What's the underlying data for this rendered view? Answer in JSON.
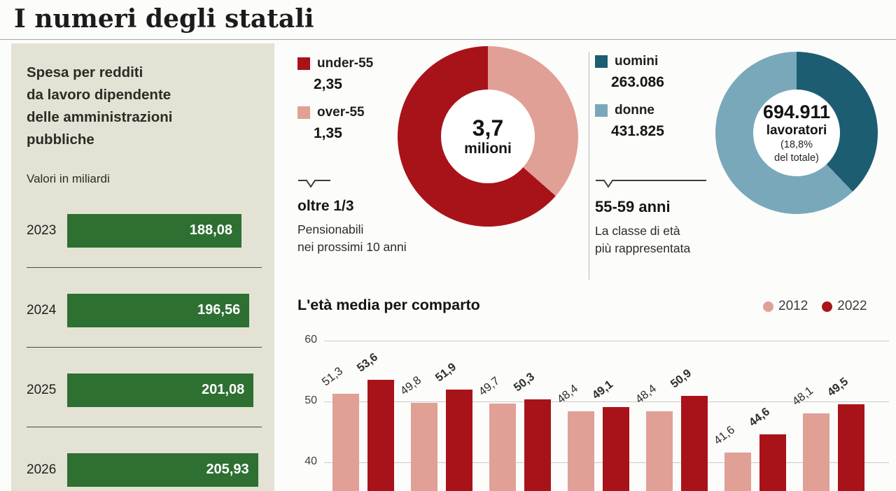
{
  "page_title": "I numeri degli statali",
  "chart_data": [
    {
      "id": "spesa-redditi",
      "type": "bar",
      "orientation": "horizontal",
      "title": "Spesa per redditi\nda lavoro dipendente\ndelle amministrazioni\npubbliche",
      "subtitle": "Valori in miliardi",
      "categories": [
        "2023",
        "2024",
        "2025",
        "2026"
      ],
      "values": [
        188.08,
        196.56,
        201.08,
        205.93
      ],
      "value_labels": [
        "188,08",
        "196,56",
        "201,08",
        "205,93"
      ],
      "bar_color": "#2d7032",
      "xlim": [
        0,
        210
      ]
    },
    {
      "id": "eta-donut",
      "type": "pie",
      "center_value": "3,7",
      "center_unit": "milioni",
      "slices": [
        {
          "label": "under-55",
          "value": 2.35,
          "value_label": "2,35",
          "color": "#a8131a"
        },
        {
          "label": "over-55",
          "value": 1.35,
          "value_label": "1,35",
          "color": "#e0a096"
        }
      ],
      "draw_order": [
        1,
        0
      ],
      "annotation_title": "oltre 1/3",
      "annotation_text": "Pensionabili\nnei prossimi 10 anni"
    },
    {
      "id": "genere-donut",
      "type": "pie",
      "center_value": "694.911",
      "center_label": "lavoratori",
      "center_sub_lines": [
        "(18,8%",
        "del totale)"
      ],
      "slices": [
        {
          "label": "uomini",
          "value": 263086,
          "value_label": "263.086",
          "color": "#1c5d72"
        },
        {
          "label": "donne",
          "value": 431825,
          "value_label": "431.825",
          "color": "#79a8bb"
        }
      ],
      "draw_order": [
        0,
        1
      ],
      "annotation_title": "55-59 anni",
      "annotation_text": "La classe di età\npiù rappresentata"
    },
    {
      "id": "eta-media-comparto",
      "type": "bar",
      "title": "L'età media per comparto",
      "legend": [
        {
          "label": "2012",
          "color": "#e0a096"
        },
        {
          "label": "2022",
          "color": "#a8131a"
        }
      ],
      "series": [
        {
          "name": "2012",
          "color": "#e0a096",
          "values": [
            51.3,
            49.8,
            49.7,
            48.4,
            48.4,
            41.6,
            48.1
          ],
          "value_labels": [
            "51,3",
            "49,8",
            "49,7",
            "48,4",
            "48,4",
            "41,6",
            "48,1"
          ]
        },
        {
          "name": "2022",
          "color": "#a8131a",
          "values": [
            53.6,
            51.9,
            50.3,
            49.1,
            50.9,
            44.6,
            49.5
          ],
          "value_labels": [
            "53,6",
            "51,9",
            "50,3",
            "49,1",
            "50,9",
            "44,6",
            "49,5"
          ]
        }
      ],
      "yticks": [
        60,
        50,
        40
      ],
      "ylim_visible": [
        40,
        60
      ],
      "grid": true
    }
  ]
}
